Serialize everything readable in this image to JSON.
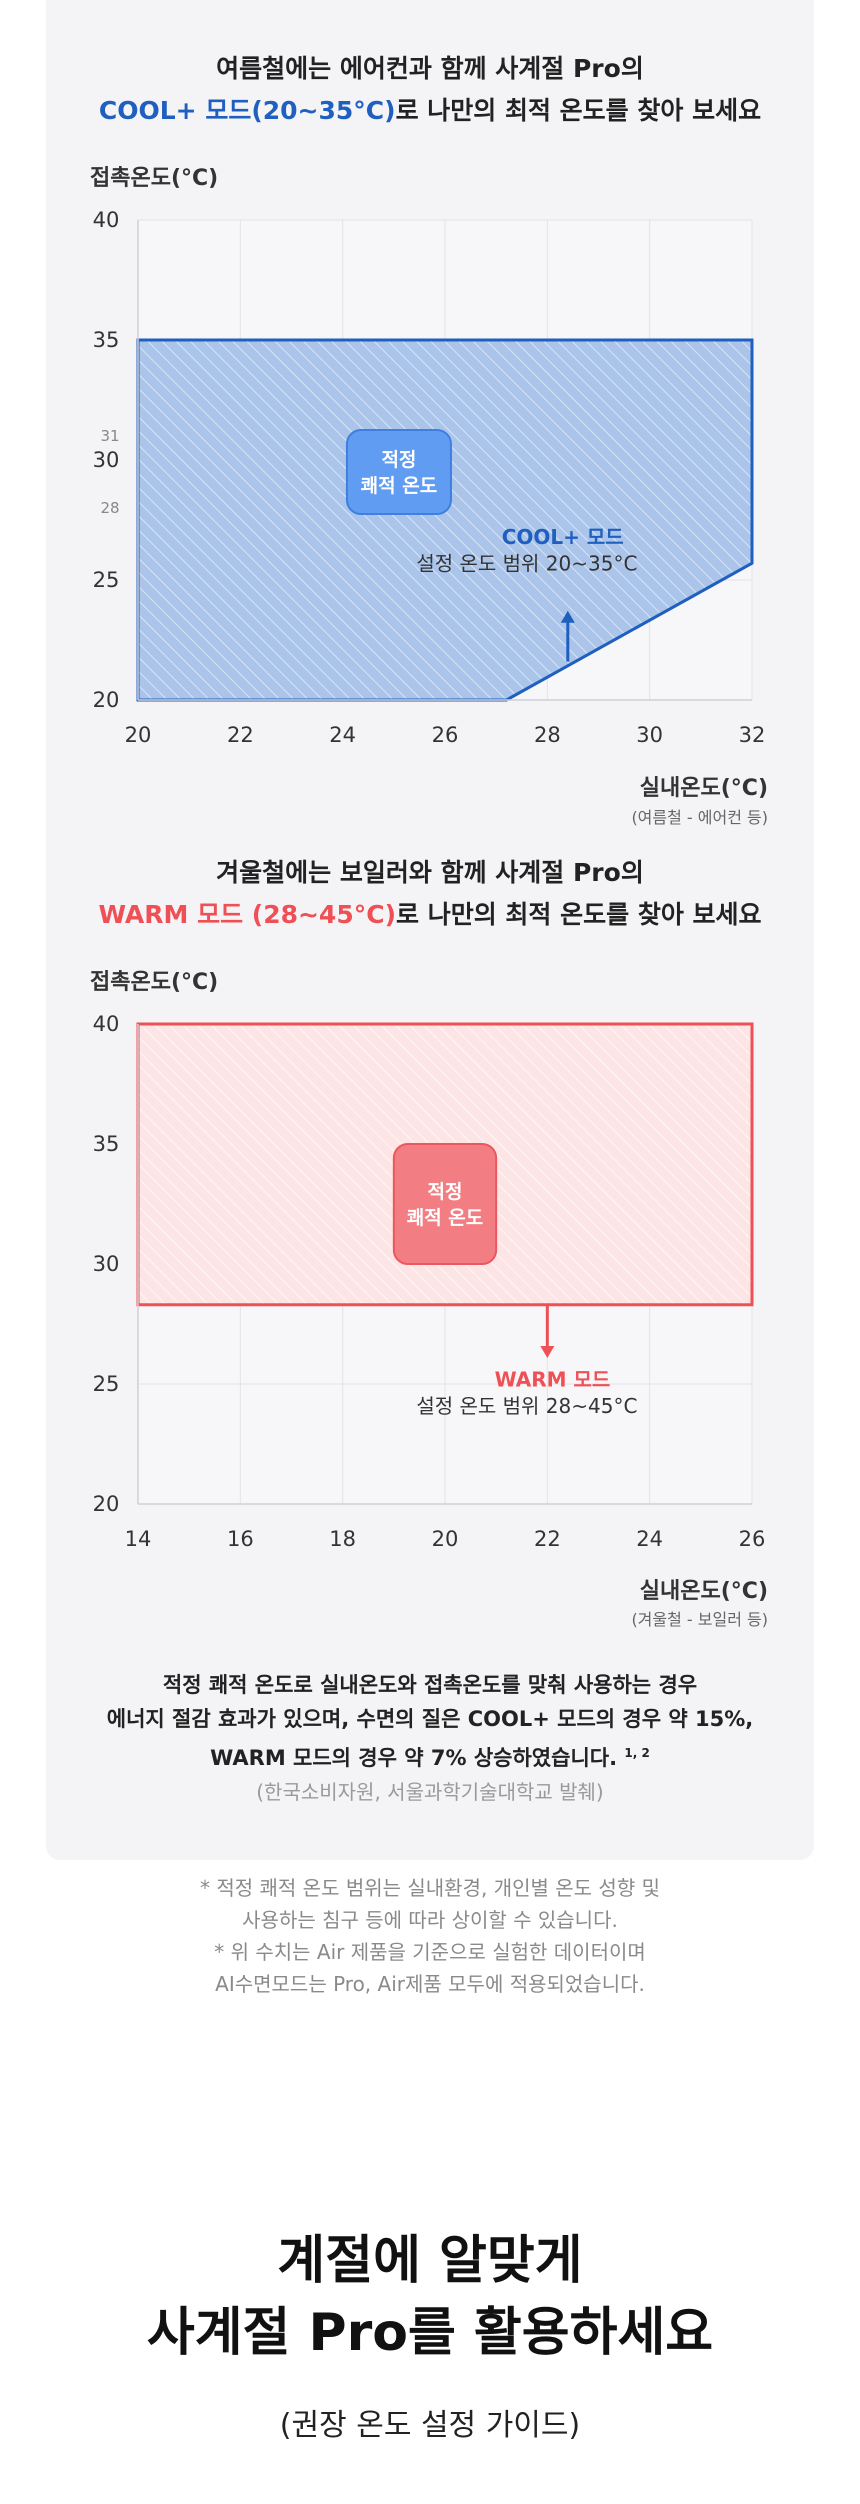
{
  "chart_data": [
    {
      "type": "area",
      "heading_line1": "여름철에는 에어컨과 함께 사계절 Pro의",
      "heading_line2_highlight": "COOL+ 모드(20~35°C)",
      "heading_line2_rest": "로 나만의 최적 온도를 찾아 보세요",
      "ylabel": "접촉온도(°C)",
      "xlabel": "실내온도(°C)",
      "xlabel_sub": "(여름철 - 에어컨 등)",
      "xlim": [
        20,
        32
      ],
      "ylim": [
        20,
        40
      ],
      "x_ticks": [
        "20",
        "22",
        "24",
        "26",
        "28",
        "30",
        "32"
      ],
      "y_ticks": [
        "20",
        "25",
        "30",
        "35",
        "40"
      ],
      "y_minor_ticks": [
        "28",
        "31"
      ],
      "region_polygon": [
        [
          20,
          20
        ],
        [
          27.2,
          20
        ],
        [
          32,
          25.7
        ],
        [
          32,
          35
        ],
        [
          20,
          35
        ]
      ],
      "optimal_range": [
        28,
        31
      ],
      "optimal_label_line1": "적정",
      "optimal_label_line2": "쾌적 온도",
      "annotation_title": "COOL+ 모드",
      "annotation_text": "설정 온도 범위 20~35°C",
      "color": "#1f5fbf"
    },
    {
      "type": "area",
      "heading_line1": "겨울철에는 보일러와 함께 사계절 Pro의",
      "heading_line2_highlight": "WARM 모드 (28~45°C)",
      "heading_line2_rest": "로 나만의 최적 온도를 찾아 보세요",
      "ylabel": "접촉온도(°C)",
      "xlabel": "실내온도(°C)",
      "xlabel_sub": "(겨울철 - 보일러 등)",
      "xlim": [
        14,
        26
      ],
      "ylim": [
        20,
        40
      ],
      "x_ticks": [
        "14",
        "16",
        "18",
        "20",
        "22",
        "24",
        "26"
      ],
      "y_ticks": [
        "20",
        "25",
        "30",
        "35",
        "40"
      ],
      "region_polygon": [
        [
          14,
          28.3
        ],
        [
          26,
          28.3
        ],
        [
          26,
          40
        ],
        [
          14,
          40
        ]
      ],
      "optimal_box": {
        "x": [
          19,
          21
        ],
        "y": [
          30,
          35
        ]
      },
      "optimal_label_line1": "적정",
      "optimal_label_line2": "쾌적 온도",
      "annotation_title": "WARM 모드",
      "annotation_text": "설정 온도 범위 28~45°C",
      "color": "#ef5055"
    }
  ],
  "summary": {
    "line1": "적정 쾌적 온도로 실내온도와 접촉온도를 맞춰 사용하는 경우",
    "line2": "에너지 절감 효과가 있으며, 수면의 질은 COOL+ 모드의 경우 약 15%,",
    "line3": "WARM 모드의 경우 약 7% 상승하였습니다.",
    "footnote_ref": "1, 2",
    "source": "(한국소비자원, 서울과학기술대학교 발췌)"
  },
  "notes": [
    "* 적정 쾌적 온도 범위는 실내환경, 개인별 온도 성향 및",
    "사용하는 침구 등에 따라 상이할 수 있습니다.",
    "* 위 수치는 Air 제품을 기준으로 실험한 데이터이며",
    "AI수면모드는 Pro, Air제품 모두에 적용되었습니다."
  ],
  "section": {
    "title_line1": "계절에 알맞게",
    "title_line2": "사계절 Pro를 활용하세요",
    "subtitle": "(권장 온도 설정 가이드)"
  }
}
